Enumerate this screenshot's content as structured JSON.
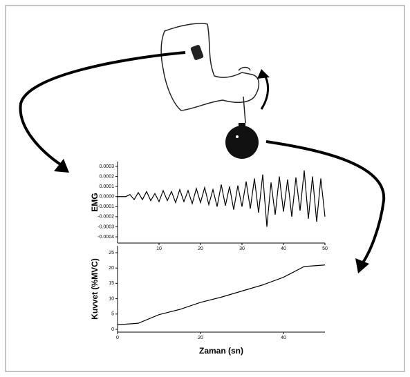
{
  "chart_data": [
    {
      "type": "line",
      "ylabel": "EMG",
      "x": [
        0,
        1,
        2,
        3,
        4,
        5,
        6,
        7,
        8,
        9,
        10,
        11,
        12,
        13,
        14,
        15,
        16,
        17,
        18,
        19,
        20,
        21,
        22,
        23,
        24,
        25,
        26,
        27,
        28,
        29,
        30,
        31,
        32,
        33,
        34,
        35,
        36,
        37,
        38,
        39,
        40,
        41,
        42,
        43,
        44,
        45,
        46,
        47,
        48,
        49,
        50
      ],
      "series": [
        {
          "color": "#000000",
          "values": [
            0,
            0,
            0,
            2e-05,
            -3e-05,
            4e-05,
            -3e-05,
            5e-05,
            -4e-05,
            3e-05,
            -5e-05,
            6e-05,
            -4e-05,
            5e-05,
            -6e-05,
            7e-05,
            -5e-05,
            6e-05,
            -7e-05,
            8e-05,
            -6e-05,
            9e-05,
            -8e-05,
            7e-05,
            -0.0001,
            0.00012,
            -9e-05,
            0.0001,
            -0.00013,
            0.00011,
            -0.0001,
            0.00015,
            -0.00012,
            0.00018,
            -0.00016,
            0.00022,
            -0.0003,
            0.00014,
            -0.00018,
            0.0002,
            -0.00015,
            0.00017,
            -0.0002,
            0.00019,
            -0.00014,
            0.00026,
            -0.00022,
            0.0002,
            -0.00025,
            0.00018,
            -0.0002
          ]
        }
      ],
      "xlim": [
        0,
        50
      ],
      "xticks": [
        10,
        20,
        30,
        40,
        50
      ],
      "ylim": [
        -0.0004,
        0.0003
      ],
      "yticks": [
        0.0003,
        0.0002,
        0.0001,
        {
          "value": 0,
          "label": "0.0000"
        },
        -0.0001,
        -0.0002,
        -0.0003,
        -0.0004
      ]
    },
    {
      "type": "line",
      "ylabel": "Kuvvet (%MVC)",
      "xlabel": "Zaman (sn)",
      "x": [
        0,
        5,
        10,
        15,
        20,
        25,
        30,
        35,
        40,
        45,
        50
      ],
      "series": [
        {
          "color": "#000000",
          "values": [
            1.5,
            2,
            4.8,
            6.5,
            8.8,
            10.5,
            12.5,
            14.5,
            17,
            20.5,
            21
          ]
        }
      ],
      "xlim": [
        0,
        50
      ],
      "xticks": [
        0,
        20,
        40
      ],
      "ylim": [
        0,
        25
      ],
      "yticks": [
        0,
        5,
        10,
        15,
        20,
        25
      ]
    }
  ]
}
